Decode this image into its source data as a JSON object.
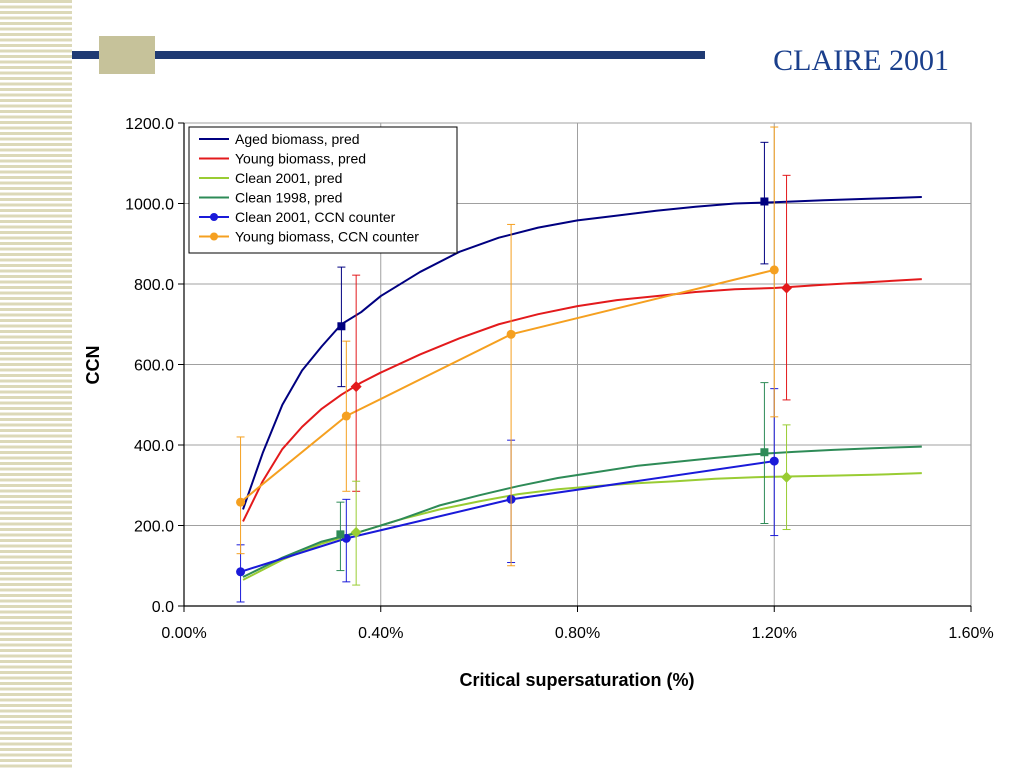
{
  "slide": {
    "title": "CLAIRE 2001"
  },
  "colors": {
    "navy": "#000080",
    "red": "#e31a1c",
    "lime": "#99cc33",
    "teal": "#2e8b57",
    "blue": "#1a1ad9",
    "orange": "#f5a020",
    "stripe": "#dcd9b8",
    "title_bar": "#1f3a73",
    "title_text": "#1a3f8c"
  },
  "chart_data": {
    "type": "line",
    "xlabel": "Critical supersaturation (%)",
    "ylabel": "CCN",
    "xlim": [
      0,
      1.6
    ],
    "ylim": [
      0,
      1200
    ],
    "x_ticks": [
      "0.00%",
      "0.40%",
      "0.80%",
      "1.20%",
      "1.60%"
    ],
    "x_tick_values": [
      0,
      0.4,
      0.8,
      1.2,
      1.6
    ],
    "y_ticks": [
      "0.0",
      "200.0",
      "400.0",
      "600.0",
      "800.0",
      "1000.0",
      "1200.0"
    ],
    "y_tick_values": [
      0,
      200,
      400,
      600,
      800,
      1000,
      1200
    ],
    "grid": true,
    "legend_position": "top-left",
    "series": [
      {
        "name": "Aged biomass, pred",
        "kind": "line",
        "color": "#000080",
        "x": [
          0.12,
          0.16,
          0.2,
          0.24,
          0.28,
          0.32,
          0.36,
          0.4,
          0.48,
          0.56,
          0.64,
          0.72,
          0.8,
          0.88,
          0.96,
          1.04,
          1.12,
          1.2,
          1.3,
          1.4,
          1.5
        ],
        "y": [
          240,
          380,
          500,
          585,
          645,
          700,
          730,
          770,
          830,
          880,
          915,
          940,
          958,
          970,
          982,
          992,
          1000,
          1003,
          1008,
          1012,
          1016
        ]
      },
      {
        "name": "Young biomass, pred",
        "kind": "line",
        "color": "#e31a1c",
        "x": [
          0.12,
          0.16,
          0.2,
          0.24,
          0.28,
          0.32,
          0.36,
          0.4,
          0.48,
          0.56,
          0.64,
          0.72,
          0.8,
          0.88,
          0.96,
          1.04,
          1.12,
          1.2,
          1.3,
          1.4,
          1.5
        ],
        "y": [
          210,
          310,
          390,
          445,
          490,
          525,
          555,
          580,
          625,
          665,
          700,
          725,
          745,
          760,
          770,
          780,
          787,
          790,
          798,
          805,
          812
        ]
      },
      {
        "name": "Clean 2001, pred",
        "kind": "line",
        "color": "#99cc33",
        "x": [
          0.12,
          0.2,
          0.28,
          0.36,
          0.44,
          0.52,
          0.6,
          0.68,
          0.76,
          0.84,
          0.92,
          1.0,
          1.08,
          1.16,
          1.24,
          1.32,
          1.4,
          1.5
        ],
        "y": [
          65,
          115,
          155,
          185,
          215,
          240,
          260,
          278,
          290,
          298,
          305,
          310,
          316,
          320,
          322,
          324,
          326,
          330
        ]
      },
      {
        "name": "Clean 1998, pred",
        "kind": "line",
        "color": "#2e8b57",
        "x": [
          0.12,
          0.2,
          0.28,
          0.36,
          0.44,
          0.52,
          0.6,
          0.68,
          0.76,
          0.84,
          0.92,
          1.0,
          1.08,
          1.16,
          1.24,
          1.32,
          1.4,
          1.5
        ],
        "y": [
          72,
          120,
          160,
          185,
          215,
          250,
          275,
          298,
          318,
          333,
          348,
          358,
          368,
          377,
          383,
          388,
          392,
          396
        ]
      },
      {
        "name": "Clean 2001, CCN counter",
        "kind": "marker-line",
        "marker": "circle",
        "color": "#1a1ad9",
        "x": [
          0.115,
          0.33,
          0.665,
          1.2
        ],
        "y": [
          85,
          168,
          265,
          360
        ],
        "y_low": [
          10,
          60,
          108,
          175
        ],
        "y_high": [
          152,
          265,
          412,
          540
        ]
      },
      {
        "name": "Young biomass, CCN counter",
        "kind": "marker-line",
        "marker": "circle",
        "color": "#f5a020",
        "x": [
          0.115,
          0.33,
          0.665,
          1.2
        ],
        "y": [
          258,
          472,
          675,
          835
        ],
        "y_low": [
          130,
          285,
          100,
          470
        ],
        "y_high": [
          420,
          658,
          948,
          1190
        ]
      },
      {
        "kind": "points",
        "marker": "square",
        "color": "#000080",
        "x": [
          0.32,
          1.18
        ],
        "y": [
          695,
          1005
        ],
        "y_low": [
          545,
          850
        ],
        "y_high": [
          842,
          1152
        ]
      },
      {
        "kind": "points",
        "marker": "diamond",
        "color": "#e31a1c",
        "x": [
          0.35,
          1.225
        ],
        "y": [
          545,
          790
        ],
        "y_low": [
          285,
          512
        ],
        "y_high": [
          822,
          1070
        ]
      },
      {
        "kind": "points",
        "marker": "square",
        "color": "#2e8b57",
        "x": [
          0.318,
          1.18
        ],
        "y": [
          178,
          382
        ],
        "y_low": [
          88,
          205
        ],
        "y_high": [
          258,
          555
        ]
      },
      {
        "kind": "points",
        "marker": "diamond",
        "color": "#99cc33",
        "x": [
          0.35,
          1.225
        ],
        "y": [
          183,
          320
        ],
        "y_low": [
          52,
          190
        ],
        "y_high": [
          310,
          450
        ]
      }
    ]
  }
}
